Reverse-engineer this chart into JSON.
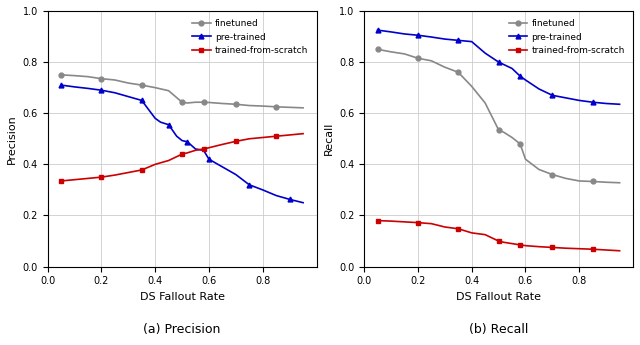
{
  "precision": {
    "finetuned": {
      "x": [
        0.05,
        0.1,
        0.15,
        0.2,
        0.25,
        0.3,
        0.35,
        0.4,
        0.45,
        0.5,
        0.52,
        0.55,
        0.58,
        0.6,
        0.65,
        0.7,
        0.75,
        0.8,
        0.85,
        0.9,
        0.95
      ],
      "y": [
        0.75,
        0.747,
        0.743,
        0.735,
        0.73,
        0.718,
        0.71,
        0.7,
        0.688,
        0.643,
        0.64,
        0.643,
        0.643,
        0.642,
        0.638,
        0.635,
        0.63,
        0.628,
        0.625,
        0.623,
        0.621
      ],
      "color": "#888888",
      "marker": "o",
      "linestyle": "-"
    },
    "pretrained": {
      "x": [
        0.05,
        0.1,
        0.15,
        0.2,
        0.25,
        0.3,
        0.35,
        0.4,
        0.42,
        0.45,
        0.48,
        0.5,
        0.52,
        0.55,
        0.58,
        0.6,
        0.65,
        0.7,
        0.75,
        0.8,
        0.85,
        0.9,
        0.95
      ],
      "y": [
        0.71,
        0.703,
        0.697,
        0.69,
        0.68,
        0.665,
        0.65,
        0.58,
        0.565,
        0.555,
        0.51,
        0.493,
        0.488,
        0.46,
        0.455,
        0.42,
        0.39,
        0.36,
        0.32,
        0.3,
        0.278,
        0.263,
        0.25
      ],
      "color": "#0000CC",
      "marker": "^",
      "linestyle": "-"
    },
    "scratch": {
      "x": [
        0.05,
        0.1,
        0.15,
        0.2,
        0.25,
        0.3,
        0.35,
        0.4,
        0.45,
        0.5,
        0.52,
        0.55,
        0.58,
        0.6,
        0.65,
        0.7,
        0.75,
        0.8,
        0.85,
        0.9,
        0.95
      ],
      "y": [
        0.335,
        0.34,
        0.345,
        0.35,
        0.358,
        0.368,
        0.378,
        0.4,
        0.415,
        0.44,
        0.445,
        0.455,
        0.46,
        0.465,
        0.478,
        0.49,
        0.5,
        0.505,
        0.51,
        0.515,
        0.52
      ],
      "color": "#CC0000",
      "marker": "s",
      "linestyle": "-"
    }
  },
  "recall": {
    "finetuned": {
      "x": [
        0.05,
        0.1,
        0.15,
        0.2,
        0.25,
        0.3,
        0.35,
        0.4,
        0.45,
        0.5,
        0.52,
        0.55,
        0.58,
        0.6,
        0.65,
        0.7,
        0.75,
        0.8,
        0.85,
        0.9,
        0.95
      ],
      "y": [
        0.85,
        0.84,
        0.832,
        0.815,
        0.805,
        0.78,
        0.76,
        0.705,
        0.64,
        0.535,
        0.525,
        0.505,
        0.48,
        0.42,
        0.38,
        0.36,
        0.345,
        0.335,
        0.333,
        0.33,
        0.328
      ],
      "color": "#888888",
      "marker": "o",
      "linestyle": "-"
    },
    "pretrained": {
      "x": [
        0.05,
        0.1,
        0.15,
        0.2,
        0.25,
        0.3,
        0.35,
        0.4,
        0.45,
        0.5,
        0.52,
        0.55,
        0.58,
        0.6,
        0.65,
        0.7,
        0.75,
        0.8,
        0.85,
        0.9,
        0.95
      ],
      "y": [
        0.925,
        0.918,
        0.91,
        0.905,
        0.898,
        0.89,
        0.885,
        0.88,
        0.835,
        0.8,
        0.79,
        0.775,
        0.745,
        0.73,
        0.695,
        0.67,
        0.66,
        0.65,
        0.643,
        0.638,
        0.635
      ],
      "color": "#0000CC",
      "marker": "^",
      "linestyle": "-"
    },
    "scratch": {
      "x": [
        0.05,
        0.1,
        0.15,
        0.2,
        0.25,
        0.3,
        0.35,
        0.4,
        0.45,
        0.5,
        0.52,
        0.55,
        0.58,
        0.6,
        0.65,
        0.7,
        0.75,
        0.8,
        0.85,
        0.9,
        0.95
      ],
      "y": [
        0.18,
        0.178,
        0.175,
        0.172,
        0.168,
        0.155,
        0.148,
        0.132,
        0.125,
        0.1,
        0.095,
        0.09,
        0.085,
        0.082,
        0.078,
        0.075,
        0.072,
        0.07,
        0.068,
        0.065,
        0.062
      ],
      "color": "#CC0000",
      "marker": "s",
      "linestyle": "-"
    }
  },
  "legend": {
    "finetuned": "finetuned",
    "pretrained": "pre-trained",
    "scratch": "trained-from-scratch"
  },
  "xlabel": "DS Fallout Rate",
  "ylabel_left": "Precision",
  "ylabel_right": "Recall",
  "caption_left": "(a) Precision",
  "caption_right": "(b) Recall",
  "ylim": [
    0.0,
    1.0
  ],
  "xlim": [
    0.0,
    1.0
  ],
  "xticks": [
    0.0,
    0.2,
    0.4,
    0.6,
    0.8
  ],
  "yticks": [
    0.0,
    0.2,
    0.4,
    0.6,
    0.8,
    1.0
  ],
  "background_color": "#ffffff",
  "grid_color": "#cccccc"
}
